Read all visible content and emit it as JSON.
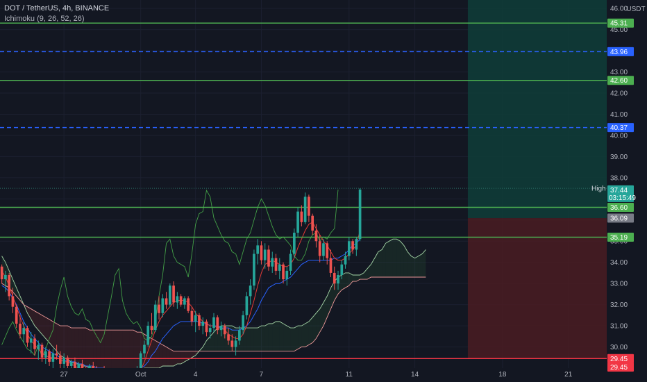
{
  "header": {
    "symbol": "DOT / TetherUS, 4h, BINANCE",
    "indicator": "Ichimoku (9, 26, 52, 26)"
  },
  "chart_data": {
    "type": "candlestick",
    "currency": "USDT",
    "y_ticks": [
      "46.00",
      "45.00",
      "44.00",
      "43.00",
      "42.00",
      "41.00",
      "40.00",
      "39.00",
      "38.00",
      "37.00",
      "36.00",
      "35.00",
      "34.00",
      "33.00",
      "32.00",
      "31.00",
      "30.00"
    ],
    "ylim": [
      29.0,
      46.4
    ],
    "x_ticks": [
      {
        "label": "27",
        "i": 17
      },
      {
        "label": "Oct",
        "i": 38
      },
      {
        "label": "4",
        "i": 53
      },
      {
        "label": "7",
        "i": 71
      },
      {
        "label": "11",
        "i": 95
      },
      {
        "label": "14",
        "i": 113
      },
      {
        "label": "18",
        "i": 137
      },
      {
        "label": "21",
        "i": 155
      }
    ],
    "n_slots": 166,
    "horizontal_levels": [
      {
        "value": 45.31,
        "label": "45.31",
        "color": "#4caf50",
        "style": "solid"
      },
      {
        "value": 43.96,
        "label": "43.96",
        "color": "#2962ff",
        "style": "dashed"
      },
      {
        "value": 42.6,
        "label": "42.60",
        "color": "#4caf50",
        "style": "solid"
      },
      {
        "value": 40.37,
        "label": "40.37",
        "color": "#2962ff",
        "style": "dashed"
      },
      {
        "value": 36.6,
        "label": "36.60",
        "color": "#4caf50",
        "style": "solid"
      },
      {
        "value": 35.19,
        "label": "35.19",
        "color": "#4caf50",
        "style": "solid"
      },
      {
        "value": 29.45,
        "label": "29.45",
        "color": "#f23645",
        "style": "solid"
      }
    ],
    "price_badges": [
      {
        "label": "45.31",
        "value": 45.31,
        "bg": "#4caf50",
        "fg": "#ffffff"
      },
      {
        "label": "43.96",
        "value": 43.96,
        "bg": "#2962ff",
        "fg": "#ffffff"
      },
      {
        "label": "42.60",
        "value": 42.6,
        "bg": "#4caf50",
        "fg": "#ffffff"
      },
      {
        "label": "40.37",
        "value": 40.37,
        "bg": "#2962ff",
        "fg": "#ffffff"
      },
      {
        "label": "37.50",
        "value": 37.5,
        "bg": "#131722",
        "fg": "#d1d4dc",
        "tag": "High"
      },
      {
        "label": "37.44",
        "value": 37.44,
        "bg": "#26a69a",
        "fg": "#ffffff",
        "sub": "03:15:49"
      },
      {
        "label": "36.60",
        "value": 36.6,
        "bg": "#4caf50",
        "fg": "#ffffff"
      },
      {
        "label": "36.09",
        "value": 36.09,
        "bg": "#787b86",
        "fg": "#ffffff"
      },
      {
        "label": "35.19",
        "value": 35.19,
        "bg": "#4caf50",
        "fg": "#ffffff"
      },
      {
        "label": "29.45",
        "value": 29.45,
        "bg": "#f23645",
        "fg": "#ffffff"
      },
      {
        "label": "29.45",
        "value": 29.05,
        "bg": "#f23645",
        "fg": "#ffffff"
      }
    ],
    "position": {
      "start_slot": 128,
      "entry": 36.09,
      "target": 46.4,
      "stop": 29.45,
      "profit_color": "#0f3d38",
      "loss_color": "#4a1c22"
    },
    "candles": [
      [
        33.8,
        33.9,
        33.0,
        33.2
      ],
      [
        33.2,
        33.6,
        32.6,
        33.4
      ],
      [
        33.4,
        33.5,
        32.2,
        32.4
      ],
      [
        32.4,
        32.8,
        31.6,
        31.9
      ],
      [
        31.9,
        32.0,
        30.9,
        31.1
      ],
      [
        31.1,
        31.5,
        30.4,
        30.6
      ],
      [
        30.6,
        31.2,
        30.2,
        30.9
      ],
      [
        30.9,
        31.0,
        30.0,
        30.2
      ],
      [
        30.2,
        30.7,
        29.7,
        30.4
      ],
      [
        30.4,
        30.6,
        29.6,
        29.9
      ],
      [
        29.9,
        30.3,
        29.4,
        30.1
      ],
      [
        30.1,
        30.2,
        29.3,
        29.5
      ],
      [
        29.5,
        30.0,
        29.2,
        29.8
      ],
      [
        29.8,
        29.9,
        29.1,
        29.3
      ],
      [
        29.3,
        29.9,
        29.0,
        29.7
      ],
      [
        29.7,
        30.1,
        29.4,
        29.6
      ],
      [
        29.6,
        29.8,
        29.0,
        29.2
      ],
      [
        29.2,
        29.7,
        28.9,
        29.5
      ],
      [
        29.5,
        29.6,
        29.0,
        29.1
      ],
      [
        29.1,
        29.4,
        28.8,
        29.3
      ],
      [
        29.3,
        29.5,
        28.7,
        28.9
      ],
      [
        28.9,
        29.3,
        28.6,
        29.2
      ],
      [
        29.2,
        29.4,
        28.8,
        29.0
      ],
      [
        29.0,
        29.1,
        28.6,
        28.8
      ],
      [
        28.8,
        29.2,
        28.5,
        29.1
      ],
      [
        29.1,
        29.3,
        28.7,
        28.9
      ],
      [
        28.9,
        29.1,
        28.6,
        28.7
      ],
      [
        28.7,
        29.0,
        28.5,
        28.9
      ],
      [
        28.9,
        29.1,
        28.6,
        28.8
      ],
      [
        28.8,
        29.0,
        28.4,
        28.6
      ],
      [
        28.6,
        28.9,
        28.3,
        28.8
      ],
      [
        28.8,
        29.0,
        28.5,
        28.7
      ],
      [
        28.7,
        28.9,
        28.4,
        28.5
      ],
      [
        28.5,
        28.8,
        28.3,
        28.7
      ],
      [
        28.7,
        29.0,
        28.5,
        28.6
      ],
      [
        28.6,
        28.8,
        28.3,
        28.4
      ],
      [
        28.4,
        28.8,
        28.2,
        28.7
      ],
      [
        28.7,
        29.1,
        28.5,
        29.0
      ],
      [
        29.0,
        29.8,
        28.9,
        29.7
      ],
      [
        29.7,
        30.3,
        29.5,
        30.1
      ],
      [
        30.1,
        31.2,
        30.0,
        31.0
      ],
      [
        31.0,
        31.6,
        30.6,
        30.8
      ],
      [
        30.8,
        32.2,
        30.7,
        32.0
      ],
      [
        32.0,
        32.4,
        31.3,
        31.6
      ],
      [
        31.6,
        32.5,
        31.4,
        32.3
      ],
      [
        32.3,
        32.6,
        31.8,
        32.0
      ],
      [
        32.0,
        33.0,
        31.9,
        32.9
      ],
      [
        32.9,
        33.1,
        31.9,
        32.1
      ],
      [
        32.1,
        32.6,
        31.8,
        32.4
      ],
      [
        32.4,
        32.5,
        31.9,
        32.0
      ],
      [
        32.0,
        32.4,
        31.8,
        32.3
      ],
      [
        32.3,
        32.4,
        31.6,
        31.7
      ],
      [
        31.7,
        31.9,
        31.0,
        31.2
      ],
      [
        31.2,
        31.7,
        30.7,
        31.5
      ],
      [
        31.5,
        31.6,
        30.8,
        31.0
      ],
      [
        31.0,
        31.4,
        30.6,
        31.2
      ],
      [
        31.2,
        31.3,
        30.5,
        30.7
      ],
      [
        30.7,
        31.1,
        30.4,
        30.9
      ],
      [
        30.9,
        31.6,
        30.7,
        31.4
      ],
      [
        31.4,
        31.5,
        30.6,
        30.8
      ],
      [
        30.8,
        31.2,
        30.5,
        31.0
      ],
      [
        31.0,
        31.1,
        30.4,
        30.6
      ],
      [
        30.6,
        30.9,
        30.1,
        30.3
      ],
      [
        30.3,
        30.6,
        29.8,
        30.0
      ],
      [
        30.0,
        30.5,
        29.6,
        30.3
      ],
      [
        30.3,
        31.0,
        30.1,
        30.8
      ],
      [
        30.8,
        31.7,
        30.6,
        31.5
      ],
      [
        31.5,
        32.6,
        31.3,
        32.4
      ],
      [
        32.4,
        33.2,
        32.0,
        32.9
      ],
      [
        32.9,
        34.6,
        32.7,
        34.4
      ],
      [
        34.4,
        35.1,
        33.9,
        34.8
      ],
      [
        34.8,
        35.0,
        33.9,
        34.1
      ],
      [
        34.1,
        34.9,
        33.7,
        34.6
      ],
      [
        34.6,
        34.8,
        33.6,
        33.8
      ],
      [
        33.8,
        34.5,
        33.5,
        34.2
      ],
      [
        34.2,
        34.4,
        33.4,
        33.6
      ],
      [
        33.6,
        34.2,
        33.2,
        33.9
      ],
      [
        33.9,
        34.0,
        33.0,
        33.2
      ],
      [
        33.2,
        33.8,
        32.9,
        33.6
      ],
      [
        33.6,
        34.6,
        33.4,
        34.4
      ],
      [
        34.4,
        35.6,
        34.2,
        35.4
      ],
      [
        35.4,
        36.6,
        35.2,
        36.4
      ],
      [
        36.4,
        36.7,
        35.7,
        35.9
      ],
      [
        35.9,
        37.3,
        35.8,
        37.1
      ],
      [
        37.1,
        37.2,
        35.9,
        36.2
      ],
      [
        36.2,
        36.3,
        35.3,
        35.5
      ],
      [
        35.5,
        35.8,
        34.7,
        35.0
      ],
      [
        35.0,
        35.3,
        34.0,
        34.3
      ],
      [
        34.3,
        35.1,
        34.1,
        34.9
      ],
      [
        34.9,
        35.0,
        33.9,
        34.2
      ],
      [
        34.2,
        34.6,
        33.3,
        33.5
      ],
      [
        33.5,
        33.8,
        32.7,
        33.0
      ],
      [
        33.0,
        33.6,
        32.7,
        33.4
      ],
      [
        33.4,
        34.1,
        33.2,
        33.9
      ],
      [
        33.9,
        34.5,
        33.7,
        34.3
      ],
      [
        34.3,
        35.2,
        34.1,
        35.0
      ],
      [
        35.0,
        35.1,
        34.4,
        34.6
      ],
      [
        34.6,
        35.2,
        34.3,
        35.1
      ],
      [
        35.1,
        37.5,
        35.0,
        37.44
      ]
    ],
    "tenkan": [
      33.6,
      33.3,
      32.9,
      32.4,
      31.9,
      31.4,
      31.0,
      30.6,
      30.3,
      30.1,
      29.9,
      29.7,
      29.6,
      29.5,
      29.5,
      29.5,
      29.4,
      29.3,
      29.3,
      29.2,
      29.1,
      29.0,
      29.0,
      28.9,
      28.9,
      28.9,
      28.9,
      28.8,
      28.8,
      28.7,
      28.7,
      28.7,
      28.7,
      28.6,
      28.6,
      28.6,
      28.6,
      28.7,
      28.9,
      29.3,
      29.8,
      30.3,
      30.8,
      31.2,
      31.5,
      31.7,
      31.9,
      32.1,
      32.2,
      32.2,
      32.2,
      32.1,
      31.9,
      31.6,
      31.4,
      31.2,
      31.1,
      31.0,
      31.0,
      30.9,
      30.9,
      30.8,
      30.6,
      30.5,
      30.4,
      30.4,
      30.6,
      31.0,
      31.6,
      32.2,
      32.9,
      33.5,
      33.9,
      34.0,
      34.1,
      34.0,
      33.9,
      33.8,
      33.8,
      33.9,
      34.2,
      34.7,
      35.1,
      35.5,
      35.8,
      35.9,
      35.6,
      35.3,
      35.0,
      34.8,
      34.5,
      34.2,
      34.1,
      34.1,
      34.2,
      34.4,
      34.6,
      34.8,
      35.5
    ],
    "kijun": [
      32.9,
      32.8,
      32.6,
      32.3,
      32.0,
      31.6,
      31.2,
      30.9,
      30.6,
      30.4,
      30.2,
      30.0,
      29.9,
      29.8,
      29.7,
      29.6,
      29.5,
      29.4,
      29.3,
      29.3,
      29.3,
      29.2,
      29.2,
      29.1,
      29.1,
      29.1,
      29.0,
      29.0,
      29.0,
      28.9,
      28.9,
      28.9,
      28.9,
      28.9,
      28.9,
      28.9,
      28.9,
      28.9,
      29.0,
      29.1,
      29.3,
      29.6,
      29.8,
      30.1,
      30.4,
      30.6,
      30.8,
      31.0,
      31.1,
      31.2,
      31.2,
      31.2,
      31.2,
      31.2,
      31.2,
      31.1,
      31.1,
      31.0,
      31.0,
      31.0,
      30.9,
      30.9,
      30.9,
      30.8,
      30.8,
      30.8,
      30.9,
      31.0,
      31.2,
      31.5,
      31.8,
      32.2,
      32.5,
      32.8,
      32.9,
      33.0,
      33.0,
      33.1,
      33.2,
      33.3,
      33.5,
      33.7,
      33.9,
      34.0,
      34.1,
      34.1,
      34.1,
      34.1,
      34.1,
      34.1,
      34.1,
      34.2,
      34.2,
      34.3,
      34.4,
      34.6,
      34.8,
      34.9,
      35.1
    ],
    "chikou": [
      30.1,
      30.5,
      30.9,
      31.2,
      30.8,
      30.5,
      30.2,
      29.9,
      29.8,
      29.6,
      30.1,
      29.5,
      29.9,
      30.4,
      30.8,
      31.9,
      32.7,
      33.3,
      32.4,
      31.9,
      31.6,
      31.5,
      31.8,
      31.3,
      31.2,
      30.8,
      30.5,
      30.2,
      30.6,
      31.5,
      32.4,
      33.4,
      33.7,
      32.2,
      31.6,
      31.3,
      31.1,
      31.2,
      30.9,
      30.4,
      30.3,
      30.5,
      31.2,
      32.4,
      33.4,
      34.9,
      35.1,
      34.3,
      34.0,
      33.9,
      33.8,
      33.3,
      34.4,
      35.8,
      36.3,
      36.4,
      37.4,
      37.1,
      36.1,
      35.7,
      35.3,
      35.0,
      34.9,
      34.5,
      34.4,
      33.9,
      34.5,
      35.1,
      35.4,
      36.0,
      36.6,
      37.0,
      36.7,
      36.2,
      35.7,
      35.3,
      35.1,
      35.2,
      35.0,
      34.8,
      34.3,
      34.1,
      34.1,
      34.4,
      35.0,
      35.3,
      35.4,
      35.0,
      35.2,
      35.1,
      35.4,
      35.6,
      37.44
    ],
    "span_a": [
      34.3,
      34.0,
      33.6,
      33.2,
      32.8,
      32.4,
      32.0,
      31.6,
      31.3,
      31.0,
      30.8,
      30.6,
      30.4,
      30.2,
      30.0,
      29.8,
      29.6,
      29.5,
      29.4,
      29.3,
      29.2,
      29.2,
      29.1,
      29.1,
      29.0,
      29.0,
      28.9,
      28.9,
      28.9,
      28.8,
      28.8,
      28.8,
      28.8,
      28.8,
      28.8,
      28.8,
      28.8,
      28.8,
      28.9,
      29.0,
      29.0,
      29.0,
      29.0,
      29.0,
      29.1,
      29.1,
      29.1,
      29.1,
      29.2,
      29.2,
      29.3,
      29.4,
      29.5,
      29.6,
      29.8,
      30.0,
      30.3,
      30.5,
      30.7,
      30.9,
      31.0,
      31.0,
      31.0,
      31.0,
      30.9,
      30.9,
      30.9,
      30.9,
      30.9,
      30.9,
      30.9,
      31.0,
      31.0,
      31.1,
      31.1,
      31.2,
      31.2,
      31.1,
      31.0,
      30.9,
      30.9,
      31.0,
      31.0,
      31.1,
      31.2,
      31.4,
      31.6,
      31.8,
      32.1,
      32.4,
      32.8,
      33.1,
      33.3,
      33.4,
      33.5,
      33.5,
      33.4,
      33.4,
      33.4,
      33.5,
      33.7,
      33.9,
      34.2,
      34.5,
      34.6,
      34.9,
      35.0,
      35.1,
      35.1,
      35.0,
      34.8,
      34.5,
      34.3,
      34.2,
      34.3,
      34.4,
      34.6
    ],
    "span_b": [
      33.0,
      32.9,
      32.8,
      32.6,
      32.4,
      32.2,
      32.0,
      31.9,
      31.8,
      31.7,
      31.6,
      31.5,
      31.4,
      31.3,
      31.2,
      31.1,
      31.0,
      31.0,
      31.0,
      30.9,
      30.9,
      30.9,
      30.9,
      30.9,
      30.8,
      30.8,
      30.8,
      30.8,
      30.8,
      30.8,
      30.8,
      30.8,
      30.8,
      30.8,
      30.8,
      30.8,
      30.8,
      30.7,
      30.7,
      30.6,
      30.5,
      30.4,
      30.3,
      30.2,
      30.1,
      30.0,
      29.9,
      29.8,
      29.8,
      29.8,
      29.8,
      29.8,
      29.8,
      29.8,
      29.8,
      29.8,
      29.8,
      29.8,
      29.8,
      29.8,
      29.8,
      29.8,
      29.8,
      29.8,
      29.8,
      29.8,
      29.8,
      29.8,
      29.8,
      29.8,
      29.8,
      29.8,
      29.8,
      29.8,
      29.8,
      29.8,
      29.8,
      29.8,
      29.8,
      29.8,
      29.8,
      29.9,
      30.0,
      30.0,
      30.1,
      30.2,
      30.4,
      30.7,
      31.0,
      31.4,
      31.8,
      32.2,
      32.5,
      32.7,
      32.8,
      32.9,
      33.1,
      33.1,
      33.2,
      33.2,
      33.2,
      33.3,
      33.3,
      33.3,
      33.3,
      33.3,
      33.3,
      33.3,
      33.3,
      33.3,
      33.3,
      33.3,
      33.3,
      33.3,
      33.3,
      33.3,
      33.3
    ]
  }
}
